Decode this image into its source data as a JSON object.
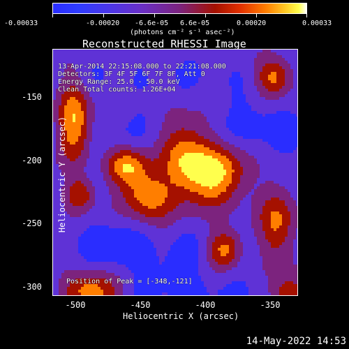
{
  "colorbar": {
    "labels": [
      "-0.00033",
      "-0.00020",
      "-6.6e-05",
      "6.6e-05",
      "0.00020",
      "0.00033"
    ],
    "units": "(photons cm⁻² s⁻¹ asec⁻²)"
  },
  "title": "Reconstructed RHESSI Image",
  "plot_annotations": {
    "time_range": "13-Apr-2014 22:15:08.000 to 22:21:08.000",
    "detectors": "Detectors: 3F 4F 5F 6F 7F 8F, Att 0",
    "energy_range": "Energy Range: 25.0 - 50.0 keV",
    "clean_counts": "Clean    Total counts: 1.26E+04",
    "peak_position": "Position of Peak = [-348,-121]"
  },
  "footer": {
    "date": "14-May-2022 14:53"
  },
  "chart_data": {
    "type": "heatmap",
    "title": "Reconstructed RHESSI Image",
    "xlabel": "Heliocentric X (arcsec)",
    "ylabel": "Heliocentric Y (arcsec)",
    "x_ticks": [
      "-500",
      "-450",
      "-400",
      "-350"
    ],
    "y_ticks": [
      "-150",
      "-200",
      "-250",
      "-300"
    ],
    "xlim": [
      -512,
      -323
    ],
    "ylim": [
      -307,
      -118
    ],
    "colorbar_min": -0.00033,
    "colorbar_max": 0.00033,
    "peak_position": [
      -348,
      -121
    ],
    "color_scale": [
      "#2a2dff",
      "#5f32d6",
      "#7c237e",
      "#a51100",
      "#ff7e00",
      "#ffff4d",
      "#ffffff"
    ]
  }
}
